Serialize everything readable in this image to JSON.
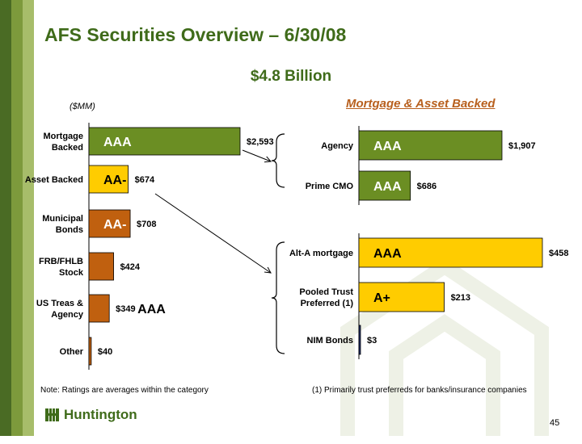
{
  "header": {
    "title": "AFS Securities Overview – 6/30/08",
    "total": "$4.8 Billion"
  },
  "units_label": "($MM)",
  "right_subtitle": "Mortgage & Asset Backed",
  "note": "Note: Ratings are averages within the category",
  "footnote": "(1) Primarily trust preferreds for banks/insurance companies",
  "page_number": "45",
  "logo": {
    "text": "Huntington",
    "icon": "huntington-logo-icon"
  },
  "colors": {
    "green": "#6b8e23",
    "yellow": "#ffcc00",
    "orange": "#c0600f",
    "navy": "#1f2d6b",
    "title_green": "#3f6b1a",
    "subtitle_orange": "#b8601e"
  },
  "chart_data": [
    {
      "type": "bar",
      "orientation": "horizontal",
      "categories": [
        "Mortgage Backed",
        "Asset Backed",
        "Municipal Bonds",
        "FRB/FHLB Stock",
        "US Treas & Agency",
        "Other"
      ],
      "values": [
        2593,
        674,
        708,
        424,
        349,
        40
      ],
      "value_labels": [
        "$2,593",
        "$674",
        "$708",
        "$424",
        "$349",
        "$40"
      ],
      "ratings": [
        "AAA",
        "AA-",
        "AA-",
        "",
        "AAA",
        ""
      ],
      "bar_colors": [
        "green",
        "yellow",
        "orange",
        "orange",
        "orange",
        "orange"
      ]
    },
    {
      "type": "bar",
      "orientation": "horizontal",
      "categories": [
        "Agency",
        "Prime CMO"
      ],
      "values": [
        1907,
        686
      ],
      "value_labels": [
        "$1,907",
        "$686"
      ],
      "ratings": [
        "AAA",
        "AAA"
      ],
      "bar_colors": [
        "green",
        "green"
      ]
    },
    {
      "type": "bar",
      "orientation": "horizontal",
      "categories": [
        "Alt-A mortgage",
        "Pooled Trust Preferred (1)",
        "NIM Bonds"
      ],
      "values": [
        458,
        213,
        3
      ],
      "value_labels": [
        "$458",
        "$213",
        "$3"
      ],
      "ratings": [
        "AAA",
        "A+",
        ""
      ],
      "bar_colors": [
        "yellow",
        "yellow",
        "navy"
      ]
    }
  ]
}
